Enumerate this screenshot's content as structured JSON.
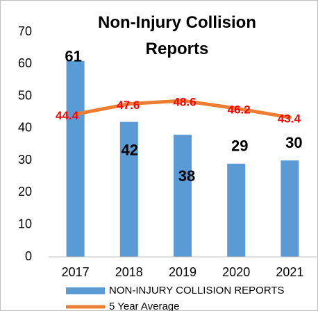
{
  "chart_data": {
    "type": "bar",
    "title": "Non-Injury Collision Reports",
    "categories": [
      "2017",
      "2018",
      "2019",
      "2020",
      "2021"
    ],
    "series": [
      {
        "name": "NON-INJURY COLLISION REPORTS",
        "type": "bar",
        "color": "#5b9bd5",
        "values": [
          61,
          42,
          38,
          29,
          30
        ]
      },
      {
        "name": "5 Year Average",
        "type": "line",
        "color": "#ed7d31",
        "label_color": "#ff0000",
        "values": [
          44.4,
          47.6,
          48.6,
          46.2,
          43.4
        ]
      }
    ],
    "ylim": [
      0,
      70
    ],
    "yticks": [
      0,
      10,
      20,
      30,
      40,
      50,
      60,
      70
    ],
    "grid": false,
    "legend": "bottom"
  }
}
